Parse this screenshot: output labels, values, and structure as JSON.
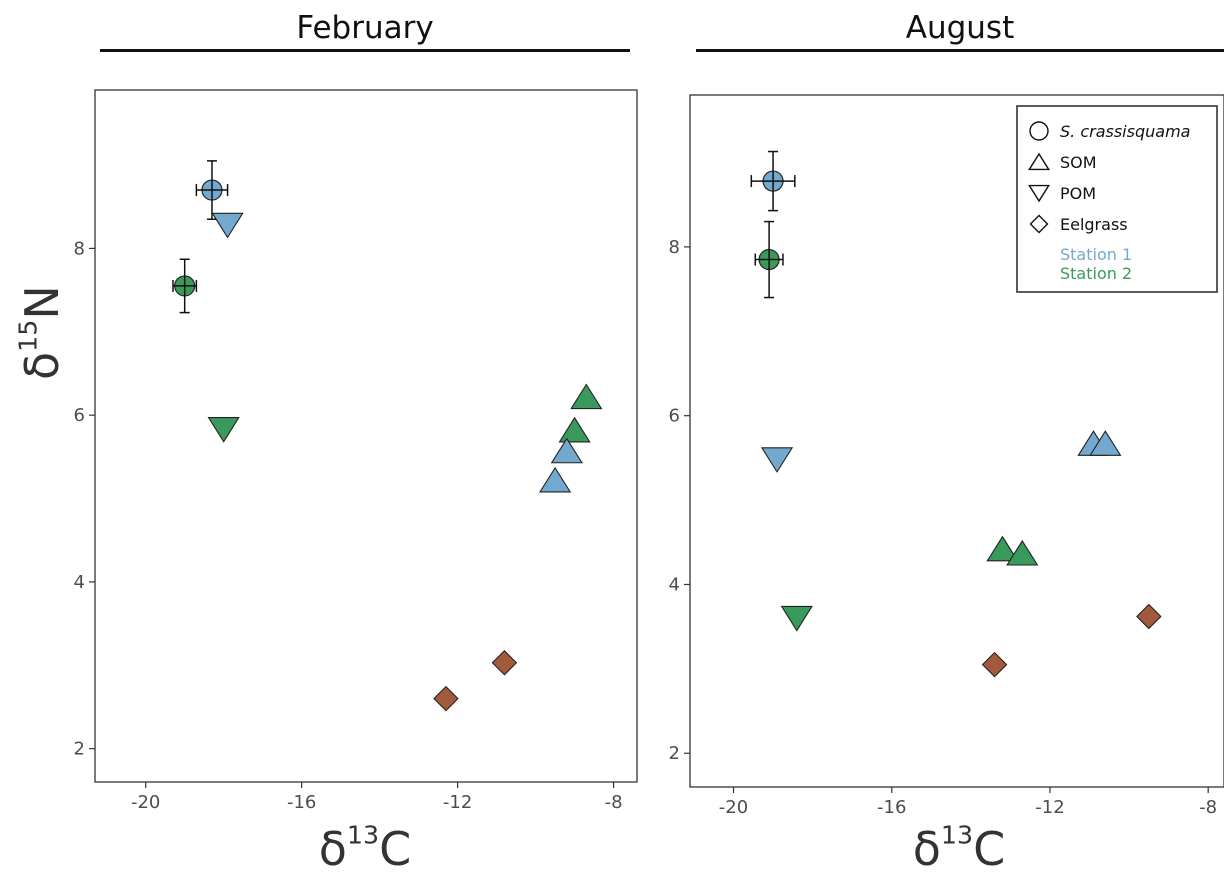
{
  "chart_data": [
    {
      "type": "scatter",
      "title": "February",
      "xlabel_base": "δ",
      "xlabel_sup": "13",
      "xlabel_elem": "C",
      "ylabel_base": "δ",
      "ylabel_sup": "15",
      "ylabel_elem": "N",
      "xlim": [
        -21.3,
        -7.4
      ],
      "ylim": [
        1.6,
        9.9
      ],
      "xticks": [
        -20,
        -16,
        -12,
        -8
      ],
      "yticks": [
        2,
        4,
        6,
        8
      ],
      "grid": false,
      "points": [
        {
          "group": "S. crassisquama",
          "station": "Station 1",
          "x": -18.3,
          "y": 8.7,
          "xerr": 0.4,
          "yerr": 0.35
        },
        {
          "group": "S. crassisquama",
          "station": "Station 2",
          "x": -19.0,
          "y": 7.55,
          "xerr": 0.3,
          "yerr": 0.32
        },
        {
          "group": "POM",
          "station": "Station 1",
          "x": -17.9,
          "y": 8.3
        },
        {
          "group": "POM",
          "station": "Station 2",
          "x": -18.0,
          "y": 5.85
        },
        {
          "group": "SOM",
          "station": "Station 2",
          "x": -8.7,
          "y": 6.2
        },
        {
          "group": "SOM",
          "station": "Station 2",
          "x": -9.0,
          "y": 5.8
        },
        {
          "group": "SOM",
          "station": "Station 1",
          "x": -9.2,
          "y": 5.55
        },
        {
          "group": "SOM",
          "station": "Station 1",
          "x": -9.5,
          "y": 5.2
        },
        {
          "group": "Eelgrass",
          "station": "",
          "x": -12.3,
          "y": 2.6
        },
        {
          "group": "Eelgrass",
          "station": "",
          "x": -10.8,
          "y": 3.03
        }
      ]
    },
    {
      "type": "scatter",
      "title": "August",
      "xlabel_base": "δ",
      "xlabel_sup": "13",
      "xlabel_elem": "C",
      "xlim": [
        -21.1,
        -7.6
      ],
      "ylim": [
        1.6,
        9.8
      ],
      "xticks": [
        -20,
        -16,
        -12,
        -8
      ],
      "yticks": [
        2,
        4,
        6,
        8
      ],
      "grid": false,
      "points": [
        {
          "group": "S. crassisquama",
          "station": "Station 1",
          "x": -19.0,
          "y": 8.78,
          "xerr": 0.55,
          "yerr": 0.35
        },
        {
          "group": "S. crassisquama",
          "station": "Station 2",
          "x": -19.1,
          "y": 7.85,
          "xerr": 0.35,
          "yerr": 0.45
        },
        {
          "group": "POM",
          "station": "Station 1",
          "x": -18.9,
          "y": 5.5
        },
        {
          "group": "POM",
          "station": "Station 2",
          "x": -18.4,
          "y": 3.62
        },
        {
          "group": "SOM",
          "station": "Station 1",
          "x": -10.9,
          "y": 5.65
        },
        {
          "group": "SOM",
          "station": "Station 1",
          "x": -10.6,
          "y": 5.65
        },
        {
          "group": "SOM",
          "station": "Station 2",
          "x": -13.2,
          "y": 4.4
        },
        {
          "group": "SOM",
          "station": "Station 2",
          "x": -12.7,
          "y": 4.35
        },
        {
          "group": "Eelgrass",
          "station": "",
          "x": -13.4,
          "y": 3.05
        },
        {
          "group": "Eelgrass",
          "station": "",
          "x": -9.5,
          "y": 3.62
        }
      ],
      "legend": {
        "placement": "top-right",
        "items": [
          {
            "label": "S. crassisquama",
            "shape": "circle-icon",
            "italic": true
          },
          {
            "label": "SOM",
            "shape": "triangle-up-icon"
          },
          {
            "label": "POM",
            "shape": "triangle-down-icon"
          },
          {
            "label": "Eelgrass",
            "shape": "diamond-icon"
          }
        ],
        "stations": [
          {
            "label": "Station 1",
            "color": "#74a9cf"
          },
          {
            "label": "Station 2",
            "color": "#3a9a5c"
          }
        ]
      }
    }
  ],
  "colors": {
    "Station 1": "#74a9cf",
    "Station 2": "#3a9a5c",
    "Eelgrass": "#a35a3c"
  }
}
